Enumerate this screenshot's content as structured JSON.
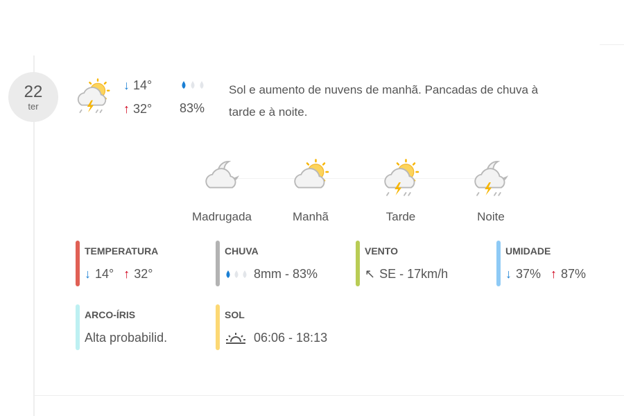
{
  "day": {
    "number": "22",
    "weekday": "ter"
  },
  "summary": {
    "icon": "sun-cloud-thunder-rain-icon",
    "min_temp": "14°",
    "max_temp": "32°",
    "rain_probability": "83%",
    "rain_level_drops": 1,
    "description": "Sol e aumento de nuvens de manhã. Pancadas de chuva à tarde e à noite."
  },
  "periods": [
    {
      "label": "Madrugada",
      "icon": "moon-cloud-icon"
    },
    {
      "label": "Manhã",
      "icon": "sun-cloud-icon"
    },
    {
      "label": "Tarde",
      "icon": "sun-cloud-thunder-icon"
    },
    {
      "label": "Noite",
      "icon": "moon-cloud-thunder-icon"
    }
  ],
  "details": {
    "temperatura": {
      "title": "TEMPERATURA",
      "min": "14°",
      "max": "32°",
      "color": "#e06055"
    },
    "chuva": {
      "title": "CHUVA",
      "value": "8mm - 83%",
      "color": "#b3b3b3"
    },
    "vento": {
      "title": "VENTO",
      "value": "SE - 17km/h",
      "color": "#b9cc55"
    },
    "umidade": {
      "title": "UMIDADE",
      "min": "37%",
      "max": "87%",
      "color": "#8ecaf5"
    },
    "arco_iris": {
      "title": "ARCO-ÍRIS",
      "value": "Alta probabilid.",
      "color": "#bdf0f2"
    },
    "sol": {
      "title": "SOL",
      "value": "06:06 - 18:13",
      "color": "#fcd874"
    }
  },
  "colors": {
    "up": "#d0021b",
    "down": "#1a7fd4",
    "drop": "#1a7fd4"
  }
}
